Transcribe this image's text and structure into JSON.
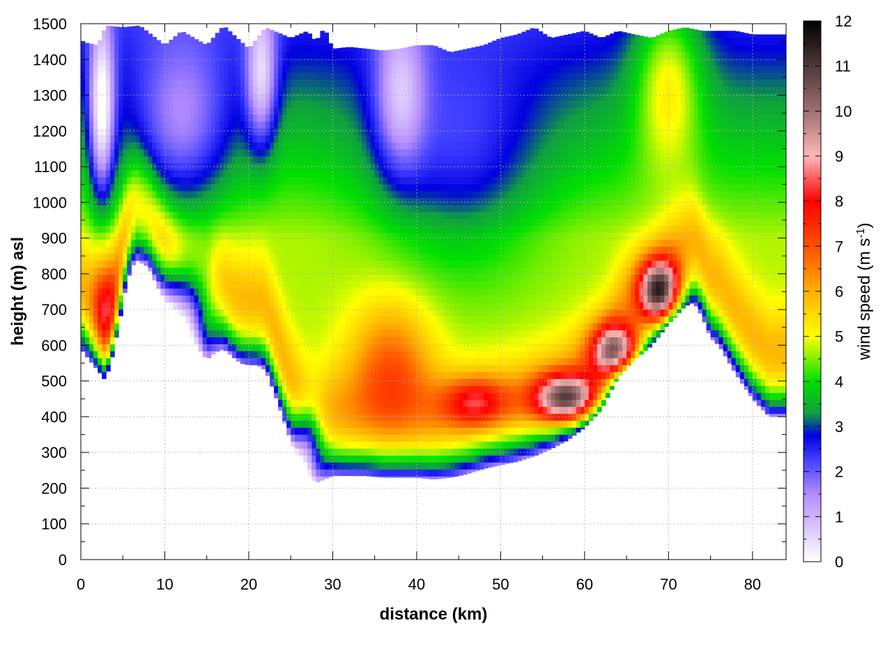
{
  "chart_data": {
    "type": "heatmap",
    "title": "",
    "xlabel": "distance (km)",
    "ylabel": "height (m) asl",
    "xlim": [
      0,
      84
    ],
    "ylim": [
      0,
      1500
    ],
    "x_ticks": [
      0,
      10,
      20,
      30,
      40,
      50,
      60,
      70,
      80
    ],
    "y_ticks": [
      0,
      100,
      200,
      300,
      400,
      500,
      600,
      700,
      800,
      900,
      1000,
      1100,
      1200,
      1300,
      1400,
      1500
    ],
    "grid": true,
    "colorbar": {
      "label_main": "wind speed (m s",
      "label_sup": "-1",
      "label_end": ")",
      "range": [
        0,
        12
      ],
      "ticks": [
        0,
        1,
        2,
        3,
        4,
        5,
        6,
        7,
        8,
        9,
        10,
        11,
        12
      ],
      "colors": [
        {
          "v": 0,
          "c": "#ffffff"
        },
        {
          "v": 1.5,
          "c": "#b48cff"
        },
        {
          "v": 2.3,
          "c": "#3c3cff"
        },
        {
          "v": 2.8,
          "c": "#0000e0"
        },
        {
          "v": 3.3,
          "c": "#10a040"
        },
        {
          "v": 4.0,
          "c": "#00e000"
        },
        {
          "v": 5.0,
          "c": "#ffff00"
        },
        {
          "v": 6.0,
          "c": "#ffb000"
        },
        {
          "v": 7.0,
          "c": "#ff5000"
        },
        {
          "v": 8.0,
          "c": "#ff0000"
        },
        {
          "v": 9.0,
          "c": "#ffb8b8"
        },
        {
          "v": 10.0,
          "c": "#a07070"
        },
        {
          "v": 12.0,
          "c": "#000000"
        }
      ]
    },
    "terrain": {
      "x": [
        0,
        1,
        2,
        2.8,
        3.5,
        4.5,
        5.5,
        6.5,
        8,
        10,
        12,
        14,
        15,
        16,
        17,
        18,
        19,
        20,
        21,
        22,
        23,
        24,
        25,
        26,
        27,
        28,
        29,
        30,
        32,
        34,
        36,
        38,
        40,
        42,
        44,
        46,
        48,
        50,
        52,
        54,
        56,
        58,
        60,
        62,
        64,
        66,
        68,
        70,
        72,
        73,
        74,
        75,
        76,
        78,
        80,
        82,
        83.5
      ],
      "y": [
        590,
        560,
        530,
        505,
        540,
        650,
        780,
        840,
        820,
        720,
        640,
        590,
        560,
        580,
        590,
        570,
        550,
        545,
        545,
        530,
        470,
        400,
        330,
        280,
        240,
        215,
        225,
        235,
        235,
        235,
        230,
        230,
        230,
        225,
        230,
        240,
        255,
        265,
        275,
        290,
        310,
        335,
        370,
        420,
        510,
        560,
        600,
        660,
        710,
        720,
        680,
        620,
        600,
        520,
        450,
        400,
        400
      ]
    },
    "top_boundary": {
      "x": [
        0,
        2,
        3,
        5,
        7,
        10,
        12,
        15,
        17,
        20,
        22,
        25,
        27,
        28,
        29,
        30,
        32,
        34,
        36,
        38,
        40,
        42,
        44,
        46,
        48,
        50,
        52,
        54,
        56,
        58,
        60,
        62,
        64,
        66,
        68,
        70,
        72,
        74,
        76,
        78,
        80,
        82,
        83.5
      ],
      "y": [
        1450,
        1440,
        1495,
        1490,
        1495,
        1440,
        1480,
        1440,
        1495,
        1430,
        1490,
        1460,
        1480,
        1450,
        1490,
        1430,
        1435,
        1430,
        1425,
        1430,
        1440,
        1440,
        1420,
        1430,
        1440,
        1460,
        1470,
        1490,
        1460,
        1470,
        1480,
        1460,
        1480,
        1470,
        1460,
        1480,
        1490,
        1480,
        1480,
        1480,
        1470,
        1470,
        1470
      ]
    },
    "wind_features": [
      {
        "x": 2.5,
        "y": 1250,
        "sx": 1.5,
        "sy": 250,
        "v": -3.5
      },
      {
        "x": 21.5,
        "y": 1350,
        "sx": 1.8,
        "sy": 200,
        "v": -2.5
      },
      {
        "x": 38.0,
        "y": 1300,
        "sx": 3.0,
        "sy": 220,
        "v": -2.0
      },
      {
        "x": 12.5,
        "y": 700,
        "sx": 3.0,
        "sy": 130,
        "v": -3.5
      },
      {
        "x": 27.0,
        "y": 320,
        "sx": 1.8,
        "sy": 110,
        "v": -3.0
      },
      {
        "x": 12.0,
        "y": 1200,
        "sx": 6.0,
        "sy": 250,
        "v": -2.0
      },
      {
        "x": 45.0,
        "y": 1100,
        "sx": 10.0,
        "sy": 300,
        "v": -1.5
      },
      {
        "x": 3.0,
        "y": 700,
        "sx": 1.5,
        "sy": 150,
        "v": 2.5
      },
      {
        "x": 37.0,
        "y": 550,
        "sx": 5.0,
        "sy": 180,
        "v": 2.0
      },
      {
        "x": 47.0,
        "y": 440,
        "sx": 4.0,
        "sy": 70,
        "v": 2.5
      },
      {
        "x": 58.0,
        "y": 450,
        "sx": 4.0,
        "sy": 70,
        "v": 5.5
      },
      {
        "x": 64.0,
        "y": 580,
        "sx": 3.0,
        "sy": 80,
        "v": 5.5
      },
      {
        "x": 69.0,
        "y": 750,
        "sx": 2.5,
        "sy": 90,
        "v": 6.0
      },
      {
        "x": 70.0,
        "y": 1350,
        "sx": 4.0,
        "sy": 250,
        "v": 2.0
      }
    ]
  }
}
